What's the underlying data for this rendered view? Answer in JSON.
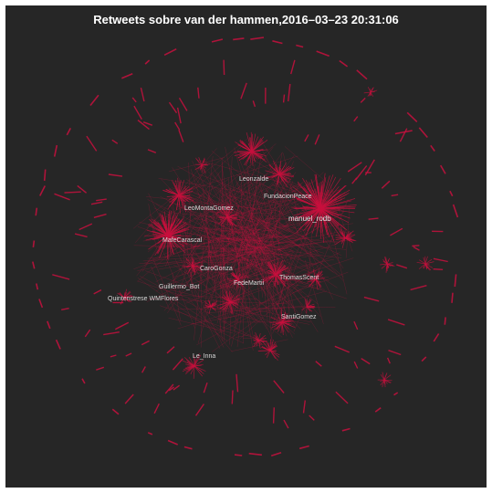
{
  "title": "Retweets sobre van der hammen,2016–03–23 20:31:06",
  "colors": {
    "background": "#262626",
    "edge": "#c8103e",
    "label": "#cfcfcf"
  },
  "labels": [
    {
      "text": "manuel_rodb",
      "cls": "big"
    },
    {
      "text": "MafeCarascal",
      "cls": "major"
    },
    {
      "text": "Leonzalde",
      "cls": "major"
    },
    {
      "text": "LeoMontaGomez",
      "cls": "major"
    },
    {
      "text": "FundacionPeace",
      "cls": "major"
    },
    {
      "text": "Quintenstrese WMFlores",
      "cls": "major"
    },
    {
      "text": "Le_Inna",
      "cls": "major"
    },
    {
      "text": "CaroGonza",
      "cls": "major"
    },
    {
      "text": "FedeMartii",
      "cls": "major"
    },
    {
      "text": "SantiGomez",
      "cls": "major"
    },
    {
      "text": "ThomasScent",
      "cls": "major"
    },
    {
      "text": "Guillermo_Bot",
      "cls": "major"
    }
  ]
}
